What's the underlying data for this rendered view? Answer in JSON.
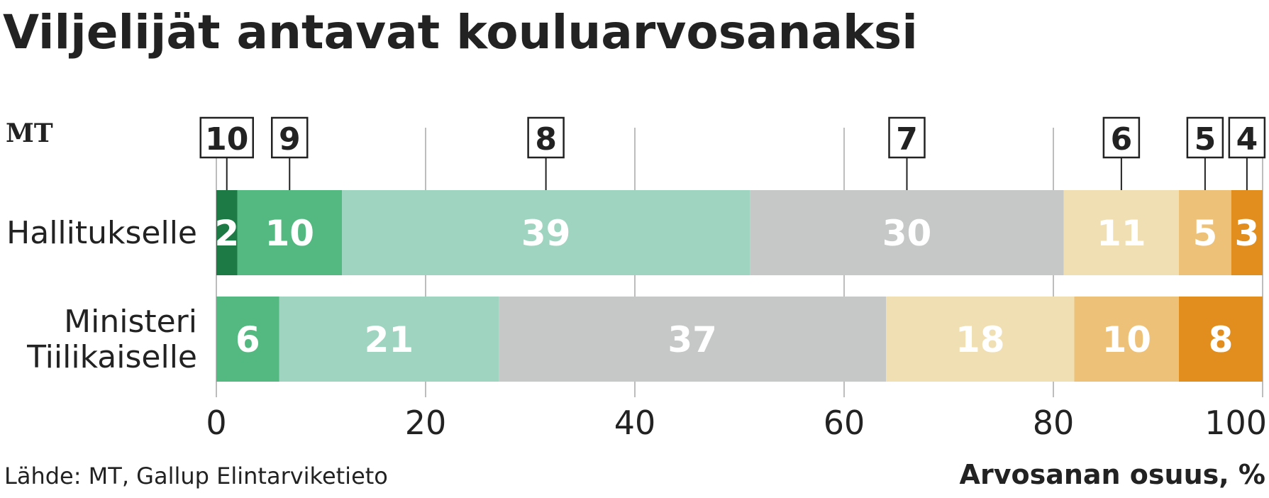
{
  "chart_data": {
    "type": "bar",
    "orientation": "horizontal",
    "stacked": true,
    "title": "Viljelijät antavat kouluarvosanaksi",
    "logo_text": "MT",
    "categories": [
      "Hallitukselle",
      "Ministeri Tiilikaiselle"
    ],
    "category_lines": [
      [
        "Hallitukselle"
      ],
      [
        "Ministeri",
        "Tiilikaiselle"
      ]
    ],
    "series": [
      {
        "name": "10",
        "color": "#1e7a45",
        "values": [
          2,
          0
        ]
      },
      {
        "name": "9",
        "color": "#54b981",
        "values": [
          10,
          6
        ]
      },
      {
        "name": "8",
        "color": "#9ed4c0",
        "values": [
          39,
          21
        ]
      },
      {
        "name": "7",
        "color": "#c6c8c8",
        "values": [
          30,
          37
        ]
      },
      {
        "name": "6",
        "color": "#f0dfb2",
        "values": [
          11,
          18
        ]
      },
      {
        "name": "5",
        "color": "#eec178",
        "values": [
          5,
          10
        ]
      },
      {
        "name": "4",
        "color": "#e18e1e",
        "values": [
          3,
          8
        ]
      }
    ],
    "xlim": [
      0,
      100
    ],
    "xticks": [
      0,
      20,
      40,
      60,
      80,
      100
    ],
    "xlabel": "Arvosanan osuus, %",
    "grid": true,
    "legend": "boxed grade labels above bars",
    "source": "Lähde: MT, Gallup Elintarviketieto"
  }
}
